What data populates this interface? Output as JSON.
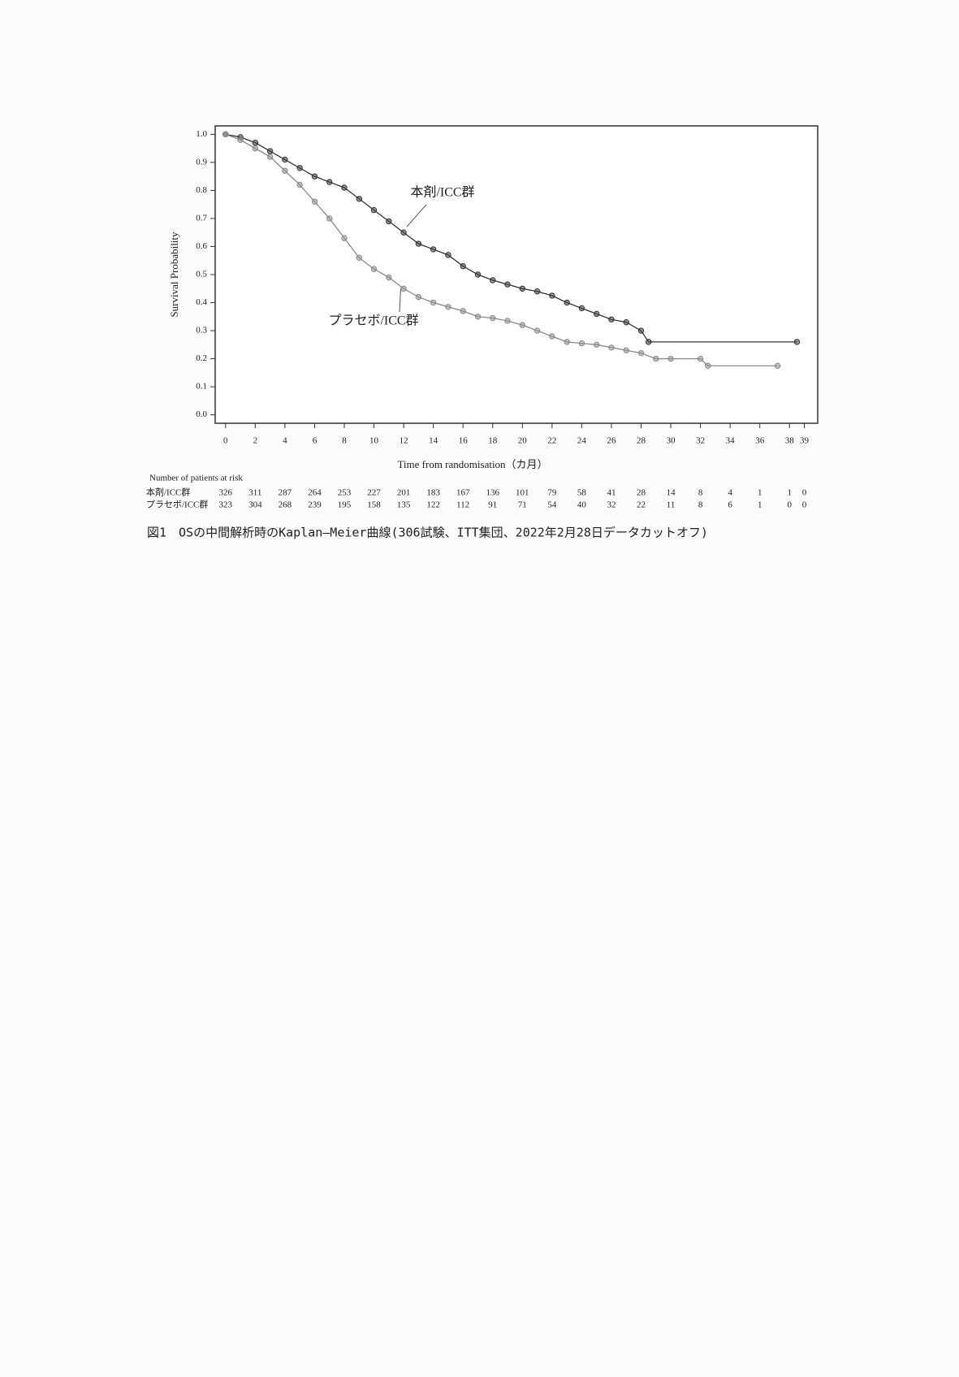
{
  "chart_data": {
    "type": "line",
    "xlabel": "Time from randomisation（カ月）",
    "ylabel": "Survival Probability",
    "xlim": [
      -0.7,
      39.9
    ],
    "ylim": [
      -0.03,
      1.03
    ],
    "xticks": [
      0,
      2,
      4,
      6,
      8,
      10,
      12,
      14,
      16,
      18,
      20,
      22,
      24,
      26,
      28,
      30,
      32,
      34,
      36,
      38,
      39
    ],
    "yticks": [
      {
        "value": 0,
        "label": "0.0"
      },
      {
        "value": 0.1,
        "label": "0.1"
      },
      {
        "value": 0.2,
        "label": "0.2"
      },
      {
        "value": 0.3,
        "label": "0.3"
      },
      {
        "value": 0.4,
        "label": "0.4"
      },
      {
        "value": 0.5,
        "label": "0.5"
      },
      {
        "value": 0.6,
        "label": "0.6"
      },
      {
        "value": 0.7,
        "label": "0.7"
      },
      {
        "value": 0.8,
        "label": "0.8"
      },
      {
        "value": 0.9,
        "label": "0.9"
      },
      {
        "value": 1,
        "label": "1.0"
      }
    ],
    "series": [
      {
        "name": "本剤/ICC群",
        "color": "#333333",
        "x": [
          0,
          1,
          2,
          3,
          4,
          5,
          6,
          7,
          8,
          9,
          10,
          11,
          12,
          13,
          14,
          15,
          16,
          17,
          18,
          19,
          20,
          21,
          22,
          23,
          24,
          25,
          26,
          27,
          28,
          28.5,
          38.5
        ],
        "values": [
          1.0,
          0.99,
          0.97,
          0.94,
          0.91,
          0.88,
          0.85,
          0.83,
          0.81,
          0.77,
          0.73,
          0.69,
          0.65,
          0.61,
          0.59,
          0.57,
          0.53,
          0.5,
          0.48,
          0.465,
          0.45,
          0.44,
          0.425,
          0.4,
          0.38,
          0.36,
          0.34,
          0.33,
          0.3,
          0.26,
          0.26
        ]
      },
      {
        "name": "プラセボ/ICC群",
        "color": "#8a8a8a",
        "x": [
          0,
          1,
          2,
          3,
          4,
          5,
          6,
          7,
          8,
          9,
          10,
          11,
          12,
          13,
          14,
          15,
          16,
          17,
          18,
          19,
          20,
          21,
          22,
          23,
          24,
          25,
          26,
          27,
          28,
          29,
          30,
          32,
          32.5,
          37.2
        ],
        "values": [
          1.0,
          0.98,
          0.95,
          0.92,
          0.87,
          0.82,
          0.76,
          0.7,
          0.63,
          0.56,
          0.52,
          0.49,
          0.45,
          0.42,
          0.4,
          0.385,
          0.37,
          0.35,
          0.345,
          0.335,
          0.32,
          0.3,
          0.28,
          0.26,
          0.255,
          0.25,
          0.24,
          0.23,
          0.22,
          0.2,
          0.2,
          0.2,
          0.175,
          0.175
        ]
      }
    ],
    "at_risk": {
      "title": "Number of patients at risk",
      "rows": [
        {
          "name": "本剤/ICC群",
          "values": [
            326,
            311,
            287,
            264,
            253,
            227,
            201,
            183,
            167,
            136,
            101,
            79,
            58,
            41,
            28,
            14,
            8,
            4,
            1,
            1,
            0
          ]
        },
        {
          "name": "プラセボ/ICC群",
          "values": [
            323,
            304,
            268,
            239,
            195,
            158,
            135,
            122,
            112,
            91,
            71,
            54,
            40,
            32,
            22,
            11,
            8,
            6,
            1,
            0,
            0
          ]
        }
      ]
    }
  },
  "caption": "図1　OSの中間解析時のKaplan―Meier曲線(306試験、ITT集団、2022年2月28日データカットオフ)"
}
